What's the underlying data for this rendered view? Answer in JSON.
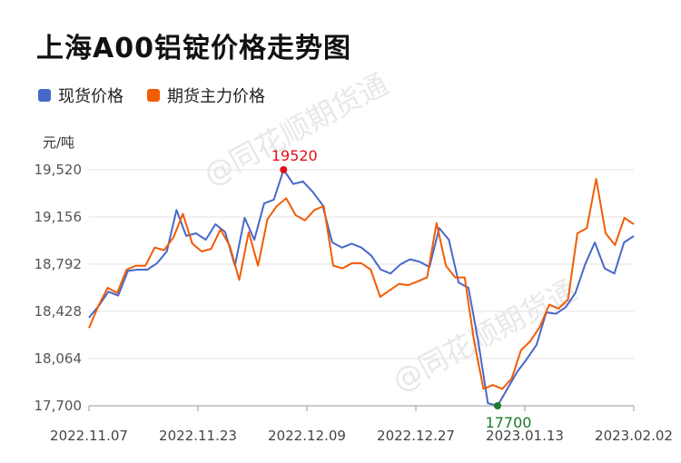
{
  "title": "上海A00铝锭价格走势图",
  "legend": [
    {
      "label": "现货价格",
      "color": "#4868c8"
    },
    {
      "label": "期货主力价格",
      "color": "#f25c05"
    }
  ],
  "unit_label": "元/吨",
  "watermark": "@同花顺期货通",
  "chart_data": {
    "type": "line",
    "title": "上海A00铝锭价格走势图",
    "ylabel": "元/吨",
    "ylim": [
      17700,
      19520
    ],
    "yticks": [
      "19,520",
      "19,156",
      "18,792",
      "18,428",
      "18,064",
      "17,700"
    ],
    "ytick_values": [
      19520,
      19156,
      18792,
      18428,
      18064,
      17700
    ],
    "xticks": [
      "2022.11.07",
      "2022.11.23",
      "2022.12.09",
      "2022.12.27",
      "2023.01.13",
      "2023.02.02"
    ],
    "grid": "horizontal",
    "series": [
      {
        "name": "现货价格",
        "color": "#4868c8",
        "values": [
          18380,
          18470,
          18580,
          18550,
          18740,
          18750,
          18750,
          18800,
          18890,
          19210,
          19010,
          19030,
          18980,
          19100,
          19040,
          18780,
          19150,
          18980,
          19260,
          19290,
          19520,
          19410,
          19430,
          19350,
          19250,
          18960,
          18920,
          18950,
          18920,
          18860,
          18750,
          18720,
          18790,
          18830,
          18810,
          18770,
          19070,
          18980,
          18650,
          18610,
          18200,
          17720,
          17700,
          17830,
          17960,
          18060,
          18170,
          18420,
          18410,
          18460,
          18570,
          18790,
          18960,
          18760,
          18720,
          18960,
          19010
        ]
      },
      {
        "name": "期货主力价格",
        "color": "#f25c05",
        "values": [
          18300,
          18470,
          18610,
          18570,
          18750,
          18780,
          18780,
          18920,
          18900,
          19000,
          19180,
          18950,
          18890,
          18910,
          19060,
          18930,
          18670,
          19040,
          18780,
          19140,
          19240,
          19300,
          19170,
          19130,
          19210,
          19240,
          18780,
          18760,
          18800,
          18800,
          18750,
          18540,
          18590,
          18640,
          18630,
          18660,
          18690,
          19110,
          18780,
          18690,
          18690,
          18200,
          17830,
          17860,
          17830,
          17910,
          18130,
          18200,
          18310,
          18480,
          18450,
          18520,
          19030,
          19070,
          19450,
          19030,
          18940,
          19150,
          19100
        ]
      }
    ],
    "annotations": [
      {
        "text": "19520",
        "value": 19520,
        "series": "现货价格",
        "color": "#e0101a"
      },
      {
        "text": "17700",
        "value": 17700,
        "series": "现货价格",
        "color": "#1c7a2a"
      }
    ]
  }
}
